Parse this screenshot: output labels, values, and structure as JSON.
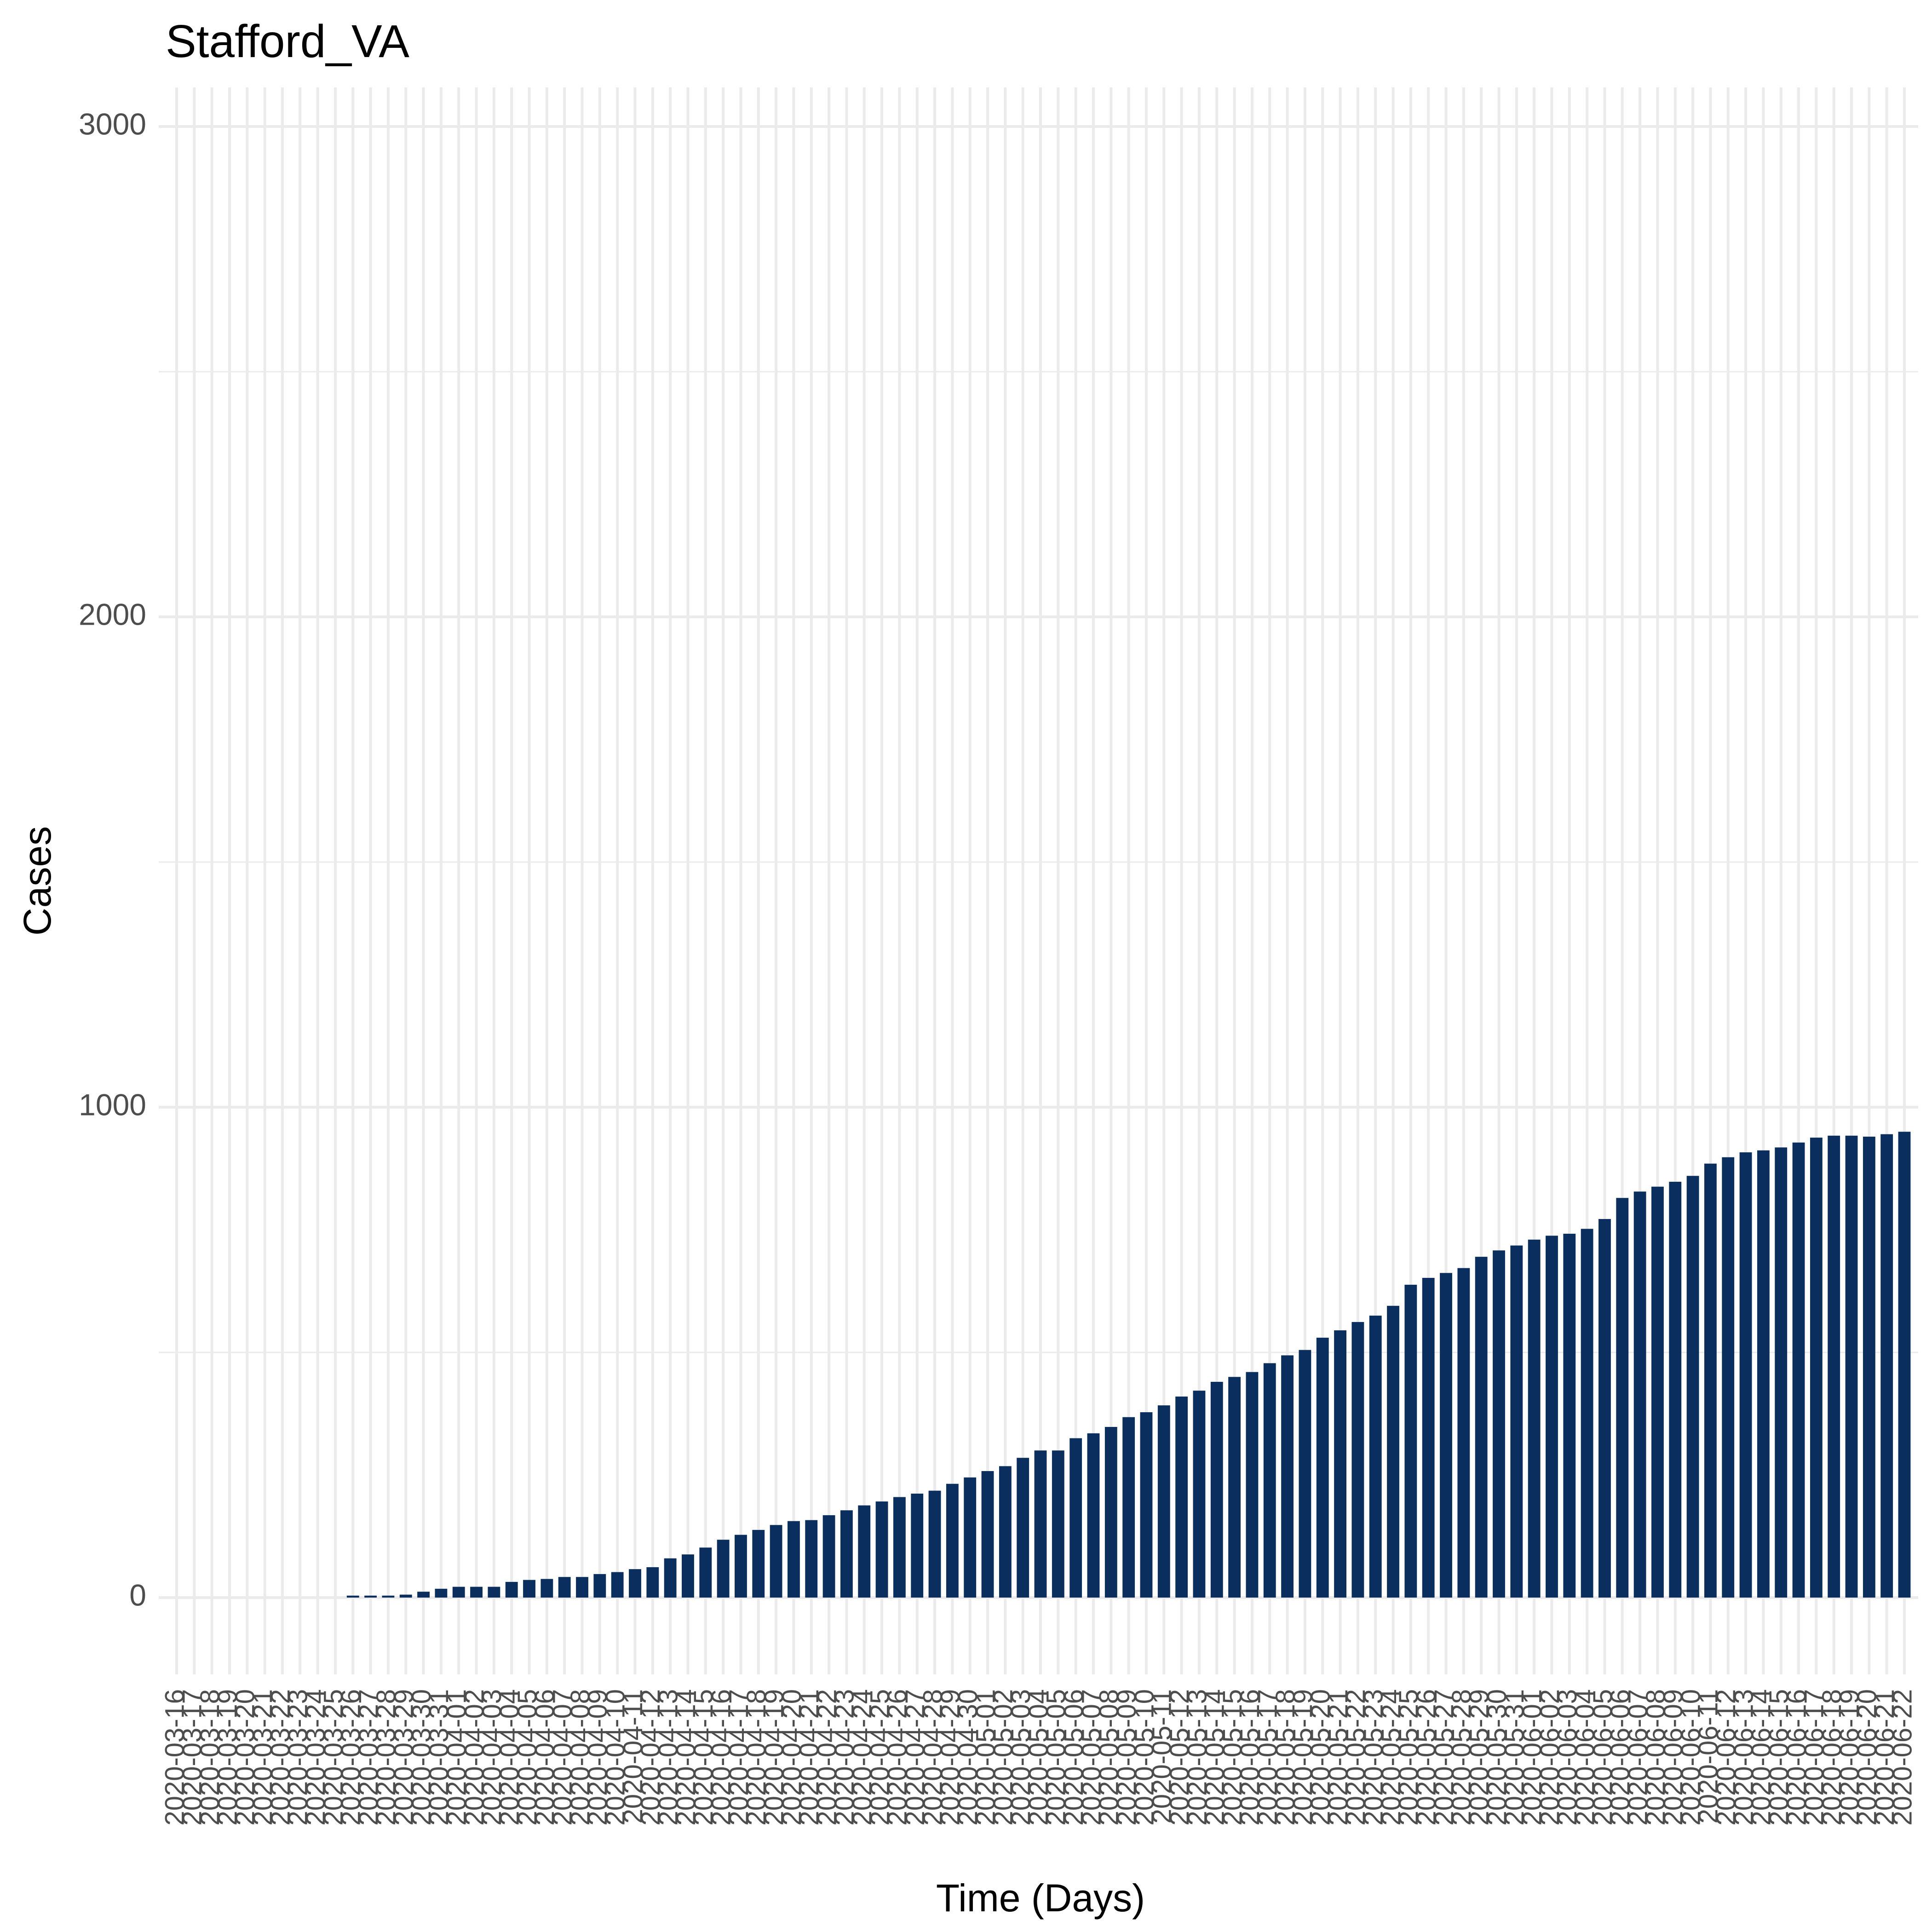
{
  "chart_data": {
    "type": "bar",
    "title": "Stafford_VA",
    "xlabel": "Time (Days)",
    "ylabel": "Cases",
    "ylim": [
      0,
      3000
    ],
    "yticks": [
      0,
      1000,
      2000,
      3000
    ],
    "grid": true,
    "bar_color": "#0a2f5f",
    "grid_color": "#ebebeb",
    "categories": [
      "2020-03-16",
      "2020-03-17",
      "2020-03-18",
      "2020-03-19",
      "2020-03-20",
      "2020-03-21",
      "2020-03-22",
      "2020-03-23",
      "2020-03-24",
      "2020-03-25",
      "2020-03-26",
      "2020-03-27",
      "2020-03-28",
      "2020-03-29",
      "2020-03-30",
      "2020-03-31",
      "2020-04-01",
      "2020-04-02",
      "2020-04-03",
      "2020-04-04",
      "2020-04-05",
      "2020-04-06",
      "2020-04-07",
      "2020-04-08",
      "2020-04-09",
      "2020-04-10",
      "2020-04-11",
      "2020-04-12",
      "2020-04-13",
      "2020-04-14",
      "2020-04-15",
      "2020-04-16",
      "2020-04-17",
      "2020-04-18",
      "2020-04-19",
      "2020-04-20",
      "2020-04-21",
      "2020-04-22",
      "2020-04-23",
      "2020-04-24",
      "2020-04-25",
      "2020-04-26",
      "2020-04-27",
      "2020-04-28",
      "2020-04-29",
      "2020-04-30",
      "2020-05-01",
      "2020-05-02",
      "2020-05-03",
      "2020-05-04",
      "2020-05-05",
      "2020-05-06",
      "2020-05-07",
      "2020-05-08",
      "2020-05-09",
      "2020-05-10",
      "2020-05-11",
      "2020-05-12",
      "2020-05-13",
      "2020-05-14",
      "2020-05-15",
      "2020-05-16",
      "2020-05-17",
      "2020-05-18",
      "2020-05-19",
      "2020-05-20",
      "2020-05-21",
      "2020-05-22",
      "2020-05-23",
      "2020-05-24",
      "2020-05-25",
      "2020-05-26",
      "2020-05-27",
      "2020-05-28",
      "2020-05-29",
      "2020-05-30",
      "2020-05-31",
      "2020-06-01",
      "2020-06-02",
      "2020-06-03",
      "2020-06-04",
      "2020-06-05",
      "2020-06-06",
      "2020-06-07",
      "2020-06-08",
      "2020-06-09",
      "2020-06-10",
      "2020-06-11",
      "2020-06-12",
      "2020-06-13",
      "2020-06-14",
      "2020-06-15",
      "2020-06-16",
      "2020-06-17",
      "2020-06-18",
      "2020-06-19",
      "2020-06-20",
      "2020-06-21",
      "2020-06-22"
    ],
    "values": [
      0,
      0,
      0,
      0,
      0,
      0,
      0,
      0,
      0,
      0,
      4,
      4,
      4,
      6,
      12,
      18,
      22,
      22,
      22,
      32,
      36,
      38,
      42,
      42,
      48,
      52,
      58,
      62,
      80,
      88,
      102,
      118,
      128,
      138,
      148,
      156,
      158,
      168,
      178,
      188,
      196,
      205,
      212,
      218,
      232,
      245,
      258,
      268,
      285,
      300,
      300,
      325,
      335,
      348,
      368,
      378,
      392,
      410,
      422,
      440,
      450,
      460,
      478,
      494,
      505,
      530,
      545,
      562,
      575,
      595,
      638,
      652,
      662,
      672,
      695,
      708,
      718,
      730,
      738,
      742,
      752,
      772,
      815,
      828,
      838,
      848,
      860,
      885,
      898,
      908,
      912,
      918,
      928,
      938,
      942,
      942,
      940,
      945,
      950
    ]
  }
}
